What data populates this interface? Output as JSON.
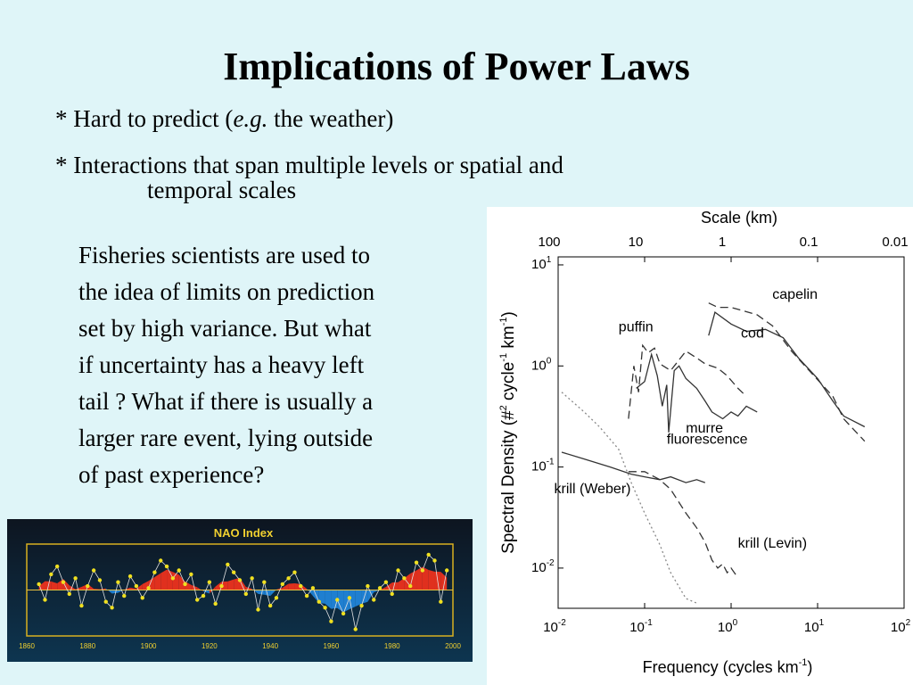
{
  "slide": {
    "title": "Implications of Power Laws",
    "bullet1_prefix": "* Hard to predict (",
    "bullet1_italic": "e.g.",
    "bullet1_suffix": " the weather)",
    "bullet2_line1": "*  Interactions that span multiple levels or spatial and",
    "bullet2_line2": "temporal scales",
    "paragraph_lines": [
      "Fisheries scientists are used to",
      "the idea of limits on prediction",
      "set by high variance.  But what",
      "if uncertainty has a heavy left",
      "tail ?  What if there is usually a",
      "larger rare event, lying outside",
      "of past experience?"
    ]
  },
  "chart_data": [
    {
      "type": "area",
      "title": "NAO  Index",
      "xlim": [
        1860,
        2000
      ],
      "x_ticks": [
        "1860",
        "1880",
        "1900",
        "1920",
        "1940",
        "1960",
        "1980",
        "2000"
      ],
      "colors": {
        "positive": "#e0301e",
        "negative": "#1f7fd0",
        "points": "#f0e020",
        "background": "#0b1b2e",
        "frame": "#d8b020"
      },
      "x": [
        1864,
        1866,
        1868,
        1870,
        1872,
        1874,
        1876,
        1878,
        1880,
        1882,
        1884,
        1886,
        1888,
        1890,
        1892,
        1894,
        1896,
        1898,
        1900,
        1902,
        1904,
        1906,
        1908,
        1910,
        1912,
        1914,
        1916,
        1918,
        1920,
        1922,
        1924,
        1926,
        1928,
        1930,
        1932,
        1934,
        1936,
        1938,
        1940,
        1942,
        1944,
        1946,
        1948,
        1950,
        1952,
        1954,
        1956,
        1958,
        1960,
        1962,
        1964,
        1966,
        1968,
        1970,
        1972,
        1974,
        1976,
        1978,
        1980,
        1982,
        1984,
        1986,
        1988,
        1990,
        1992,
        1994,
        1996,
        1998
      ],
      "values": [
        0.3,
        -0.5,
        0.8,
        1.2,
        0.4,
        -0.2,
        0.6,
        -0.8,
        0.2,
        1.0,
        0.5,
        -0.6,
        -0.9,
        0.4,
        -0.3,
        0.7,
        0.2,
        -0.4,
        0.1,
        0.9,
        1.5,
        1.2,
        0.6,
        1.0,
        0.3,
        0.8,
        -0.5,
        -0.3,
        0.4,
        -0.7,
        0.2,
        1.3,
        0.9,
        0.5,
        -0.2,
        0.6,
        -1.0,
        0.4,
        -0.8,
        -0.4,
        0.3,
        0.6,
        0.9,
        0.2,
        -0.3,
        0.1,
        -0.6,
        -0.9,
        -1.6,
        -0.5,
        -1.2,
        -0.4,
        -2.0,
        -0.8,
        0.2,
        -0.5,
        0.1,
        0.4,
        -0.2,
        1.0,
        0.6,
        0.2,
        1.4,
        1.0,
        1.8,
        1.5,
        -0.6,
        1.0
      ]
    },
    {
      "type": "line",
      "xlabel": "Frequency (cycles km",
      "xlabel_sup": "-1",
      "xlabel_end": ")",
      "ylabel": "Spectral Density (#",
      "ylabel_sup1": "2",
      "ylabel_mid": " cycle",
      "ylabel_sup2": "-1",
      "ylabel_end": " km",
      "ylabel_sup3": "-1",
      "ylabel_close": ")",
      "top_axis_title": "Scale (km)",
      "x_scale": "log",
      "y_scale": "log",
      "xlim": [
        0.01,
        100
      ],
      "ylim": [
        0.004,
        12
      ],
      "x_ticks": [
        {
          "v": 0.01,
          "label": "10",
          "sup": "-2"
        },
        {
          "v": 0.1,
          "label": "10",
          "sup": "-1"
        },
        {
          "v": 1,
          "label": "10",
          "sup": "0"
        },
        {
          "v": 10,
          "label": "10",
          "sup": "1"
        },
        {
          "v": 100,
          "label": "10",
          "sup": "2"
        }
      ],
      "y_ticks": [
        {
          "v": 0.01,
          "label": "10",
          "sup": "-2"
        },
        {
          "v": 0.1,
          "label": "10",
          "sup": "-1"
        },
        {
          "v": 1,
          "label": "10",
          "sup": "0"
        },
        {
          "v": 10,
          "label": "10",
          "sup": "1"
        }
      ],
      "top_ticks": [
        {
          "v": 0.01,
          "label": "100"
        },
        {
          "v": 0.1,
          "label": "10"
        },
        {
          "v": 1,
          "label": "1"
        },
        {
          "v": 10,
          "label": "0.1"
        },
        {
          "v": 100,
          "label": "0.01"
        }
      ],
      "series": [
        {
          "name": "capelin",
          "dash": "9,5",
          "points": [
            [
              0.55,
              4.2
            ],
            [
              0.7,
              3.8
            ],
            [
              1.0,
              3.8
            ],
            [
              2.0,
              3.2
            ],
            [
              3.0,
              2.5
            ],
            [
              5.0,
              1.4
            ],
            [
              8.0,
              0.9
            ],
            [
              15.0,
              0.5
            ],
            [
              20,
              0.3
            ],
            [
              35,
              0.18
            ]
          ]
        },
        {
          "name": "cod",
          "dash": "",
          "points": [
            [
              0.55,
              2.0
            ],
            [
              0.65,
              3.4
            ],
            [
              1.0,
              2.6
            ],
            [
              1.5,
              2.2
            ],
            [
              2.5,
              2.3
            ],
            [
              4.0,
              1.9
            ],
            [
              6.0,
              1.2
            ],
            [
              10.0,
              0.75
            ],
            [
              15.0,
              0.45
            ],
            [
              20,
              0.32
            ],
            [
              35,
              0.25
            ]
          ]
        },
        {
          "name": "puffin",
          "dash": "9,5",
          "points": [
            [
              0.065,
              0.3
            ],
            [
              0.075,
              1.0
            ],
            [
              0.085,
              0.55
            ],
            [
              0.095,
              1.6
            ],
            [
              0.11,
              1.35
            ],
            [
              0.13,
              1.5
            ],
            [
              0.15,
              1.05
            ],
            [
              0.2,
              0.9
            ],
            [
              0.3,
              1.4
            ],
            [
              0.4,
              1.2
            ],
            [
              0.5,
              1.05
            ],
            [
              0.7,
              0.95
            ],
            [
              0.9,
              0.8
            ],
            [
              1.2,
              0.6
            ],
            [
              1.5,
              0.5
            ]
          ]
        },
        {
          "name": "murre",
          "dash": "",
          "points": [
            [
              0.08,
              0.6
            ],
            [
              0.1,
              0.7
            ],
            [
              0.12,
              1.3
            ],
            [
              0.14,
              0.8
            ],
            [
              0.16,
              0.4
            ],
            [
              0.18,
              0.65
            ],
            [
              0.19,
              0.22
            ],
            [
              0.22,
              0.9
            ],
            [
              0.25,
              1.0
            ],
            [
              0.3,
              0.75
            ],
            [
              0.4,
              0.6
            ],
            [
              0.5,
              0.45
            ],
            [
              0.6,
              0.35
            ],
            [
              0.8,
              0.3
            ],
            [
              1.0,
              0.35
            ],
            [
              1.2,
              0.32
            ],
            [
              1.5,
              0.4
            ],
            [
              2.0,
              0.35
            ]
          ]
        },
        {
          "name": "fluorescence",
          "dash": "2,3",
          "points": [
            [
              0.011,
              0.55
            ],
            [
              0.02,
              0.35
            ],
            [
              0.03,
              0.25
            ],
            [
              0.05,
              0.15
            ],
            [
              0.07,
              0.07
            ],
            [
              0.1,
              0.035
            ],
            [
              0.15,
              0.017
            ],
            [
              0.2,
              0.009
            ],
            [
              0.3,
              0.005
            ],
            [
              0.4,
              0.0045
            ]
          ]
        },
        {
          "name": "krill (Weber)",
          "dash": "",
          "points": [
            [
              0.011,
              0.14
            ],
            [
              0.02,
              0.12
            ],
            [
              0.04,
              0.1
            ],
            [
              0.07,
              0.085
            ],
            [
              0.1,
              0.08
            ],
            [
              0.15,
              0.075
            ],
            [
              0.2,
              0.08
            ],
            [
              0.3,
              0.07
            ],
            [
              0.4,
              0.075
            ],
            [
              0.5,
              0.07
            ]
          ]
        },
        {
          "name": "krill (Levin)",
          "dash": "9,5",
          "points": [
            [
              0.065,
              0.09
            ],
            [
              0.1,
              0.09
            ],
            [
              0.15,
              0.075
            ],
            [
              0.2,
              0.06
            ],
            [
              0.3,
              0.035
            ],
            [
              0.4,
              0.025
            ],
            [
              0.5,
              0.018
            ],
            [
              0.6,
              0.012
            ],
            [
              0.7,
              0.01
            ],
            [
              0.8,
              0.011
            ],
            [
              0.9,
              0.009
            ],
            [
              1.0,
              0.01
            ],
            [
              1.2,
              0.008
            ]
          ]
        }
      ]
    }
  ]
}
